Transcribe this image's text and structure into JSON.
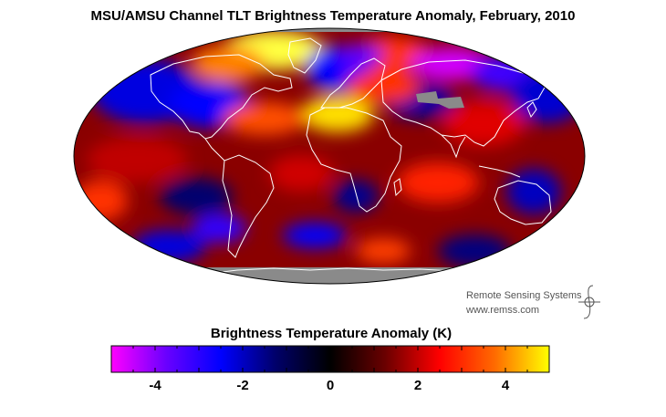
{
  "title": "MSU/AMSU Channel TLT Brightness Temperature Anomaly, February, 2010",
  "credit": {
    "line1": "Remote Sensing Systems",
    "line2": "www.remss.com"
  },
  "colorbar": {
    "title": "Brightness Temperature Anomaly (K)",
    "range": [
      -5,
      5
    ],
    "tick_labels": [
      "-4",
      "-2",
      "0",
      "2",
      "4"
    ],
    "tick_values": [
      -4,
      -2,
      0,
      2,
      4
    ],
    "colors": [
      "#ff00ff",
      "#6a00ff",
      "#0000ff",
      "#00006a",
      "#000000",
      "#6a0000",
      "#ff0000",
      "#ff6a00",
      "#ffff00"
    ]
  },
  "map": {
    "projection": "Mollweide",
    "no_data_color": "#8a8a8a",
    "coastline_color": "#ffffff"
  }
}
